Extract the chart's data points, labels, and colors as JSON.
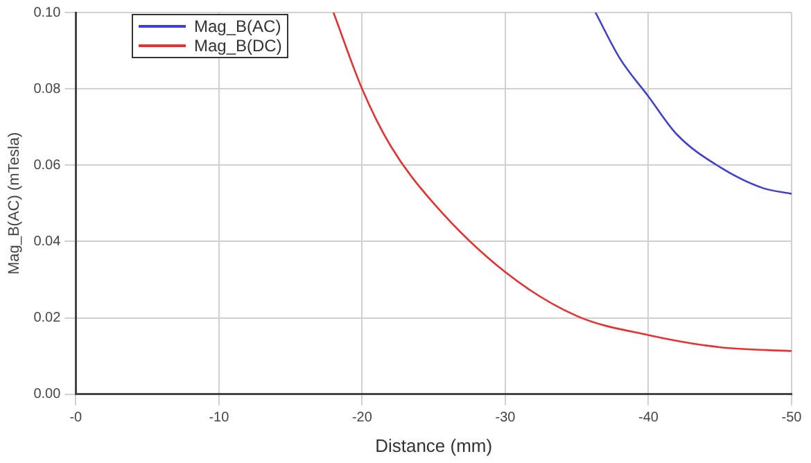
{
  "chart_data": {
    "type": "line",
    "xlabel": "Distance (mm)",
    "ylabel": "Mag_B(AC) (mTesla)",
    "xlim": [
      0,
      -50
    ],
    "xticks": [
      {
        "value": 0,
        "label": "-0"
      },
      -10,
      -20,
      -30,
      -40,
      -50
    ],
    "ylim": [
      0,
      0.1
    ],
    "yticks": [
      {
        "value": 0,
        "label": "0.00"
      },
      {
        "value": 0.02,
        "label": "0.02"
      },
      {
        "value": 0.04,
        "label": "0.04"
      },
      {
        "value": 0.06,
        "label": "0.06"
      },
      {
        "value": 0.08,
        "label": "0.08"
      },
      {
        "value": 0.1,
        "label": "0.10"
      }
    ],
    "grid": true,
    "legend": "top left",
    "marker": "none",
    "line_style": "solid",
    "series": [
      {
        "name": "Mag_B(AC)",
        "color": "#4040d0",
        "x": [
          -36.3,
          -38,
          -40,
          -42,
          -45,
          -48,
          -50
        ],
        "values": [
          0.1,
          0.088,
          0.078,
          0.068,
          0.0595,
          0.054,
          0.0525
        ]
      },
      {
        "name": "Mag_B(DC)",
        "color": "#e83030",
        "x": [
          -18,
          -20,
          -22,
          -25,
          -30,
          -35,
          -40,
          -45,
          -50
        ],
        "values": [
          0.1,
          0.08,
          0.065,
          0.05,
          0.032,
          0.0205,
          0.0155,
          0.0123,
          0.0113
        ]
      }
    ]
  }
}
